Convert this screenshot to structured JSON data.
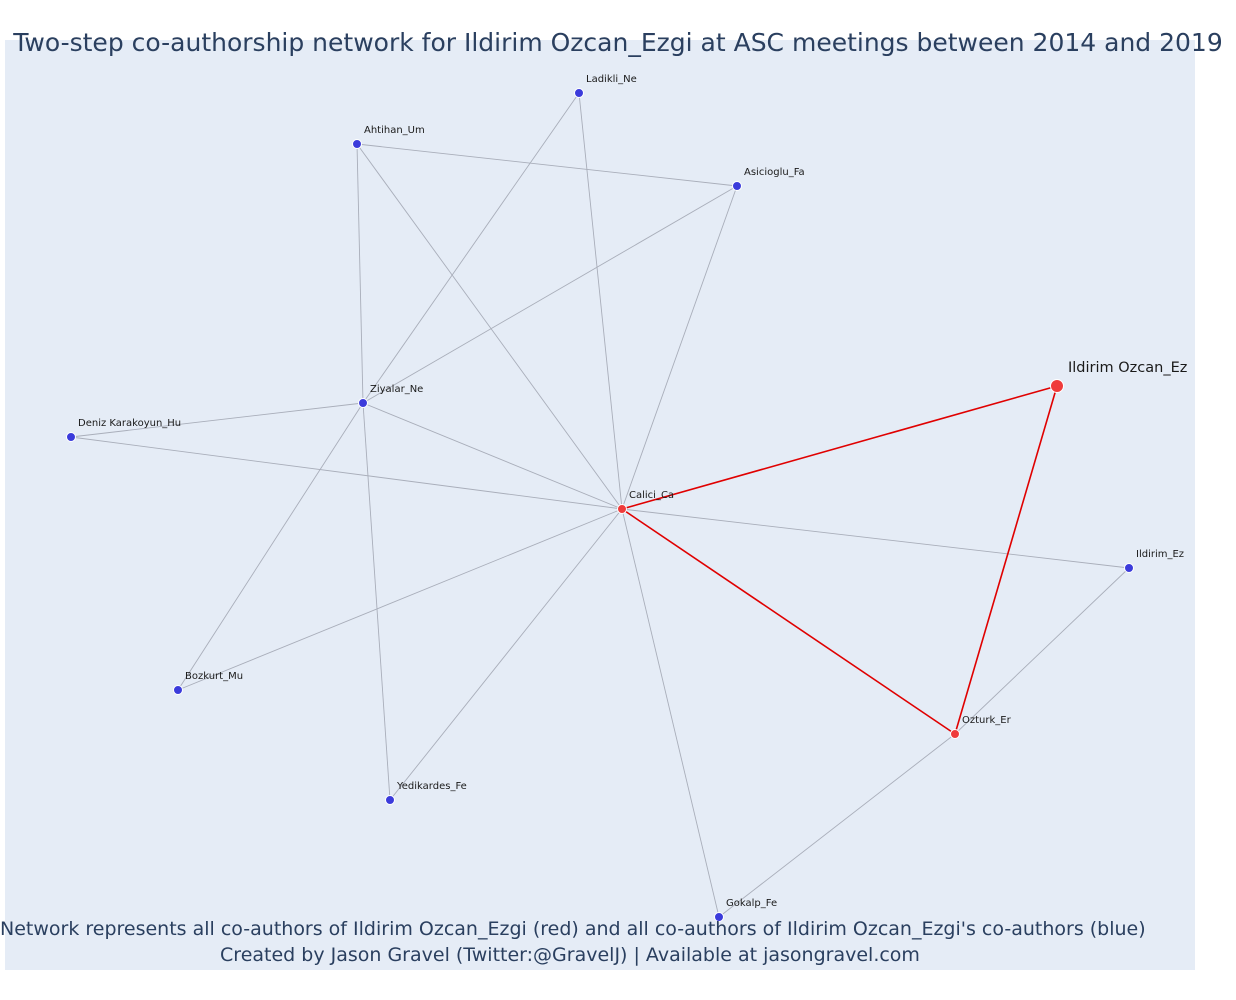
{
  "title": "Two-step co-authorship network for Ildirim Ozcan_Ezgi at ASC meetings between 2014 and 2019",
  "caption": {
    "line1": "Network represents all co-authors of Ildirim Ozcan_Ezgi (red) and all co-authors of Ildirim Ozcan_Ezgi's co-authors (blue)",
    "line2": "Created by Jason Gravel (Twitter:@GravelJ) | Available at jasongravel.com"
  },
  "colors": {
    "background": "#e5ecf6",
    "primary_node": "#ef3b3b",
    "secondary_node": "#3b3bdb",
    "primary_edge": "#e00000",
    "secondary_edge": "#a9aeba"
  },
  "nodes": [
    {
      "id": "ildirim-ozcan",
      "label": "Ildirim Ozcan_Ez",
      "group": "focal"
    },
    {
      "id": "calici",
      "label": "Calici_Ca",
      "group": "coauthor"
    },
    {
      "id": "ozturk",
      "label": "Ozturk_Er",
      "group": "coauthor"
    },
    {
      "id": "ladikli",
      "label": "Ladikli_Ne",
      "group": "second"
    },
    {
      "id": "ahtihan",
      "label": "Ahtihan_Um",
      "group": "second"
    },
    {
      "id": "asicioglu",
      "label": "Asicioglu_Fa",
      "group": "second"
    },
    {
      "id": "ziyalar",
      "label": "Ziyalar_Ne",
      "group": "second"
    },
    {
      "id": "deniz",
      "label": "Deniz Karakoyun_Hu",
      "group": "second"
    },
    {
      "id": "ildirim-ez",
      "label": "Ildirim_Ez",
      "group": "second"
    },
    {
      "id": "bozkurt",
      "label": "Bozkurt_Mu",
      "group": "second"
    },
    {
      "id": "yedikardes",
      "label": "Yedikardes_Fe",
      "group": "second"
    },
    {
      "id": "gokalp",
      "label": "Gokalp_Fe",
      "group": "second"
    }
  ],
  "edges": [
    {
      "from": "ildirim-ozcan",
      "to": "calici",
      "type": "primary"
    },
    {
      "from": "ildirim-ozcan",
      "to": "ozturk",
      "type": "primary"
    },
    {
      "from": "calici",
      "to": "ozturk",
      "type": "primary"
    },
    {
      "from": "calici",
      "to": "ladikli",
      "type": "secondary"
    },
    {
      "from": "calici",
      "to": "ahtihan",
      "type": "secondary"
    },
    {
      "from": "calici",
      "to": "asicioglu",
      "type": "secondary"
    },
    {
      "from": "calici",
      "to": "ziyalar",
      "type": "secondary"
    },
    {
      "from": "calici",
      "to": "deniz",
      "type": "secondary"
    },
    {
      "from": "calici",
      "to": "ildirim-ez",
      "type": "secondary"
    },
    {
      "from": "calici",
      "to": "bozkurt",
      "type": "secondary"
    },
    {
      "from": "calici",
      "to": "yedikardes",
      "type": "secondary"
    },
    {
      "from": "calici",
      "to": "gokalp",
      "type": "secondary"
    },
    {
      "from": "ahtihan",
      "to": "asicioglu",
      "type": "secondary"
    },
    {
      "from": "ahtihan",
      "to": "ziyalar",
      "type": "secondary"
    },
    {
      "from": "ladikli",
      "to": "ziyalar",
      "type": "secondary"
    },
    {
      "from": "asicioglu",
      "to": "ziyalar",
      "type": "secondary"
    },
    {
      "from": "ziyalar",
      "to": "deniz",
      "type": "secondary"
    },
    {
      "from": "ziyalar",
      "to": "bozkurt",
      "type": "secondary"
    },
    {
      "from": "ziyalar",
      "to": "yedikardes",
      "type": "secondary"
    },
    {
      "from": "ozturk",
      "to": "ildirim-ez",
      "type": "secondary"
    },
    {
      "from": "ozturk",
      "to": "gokalp",
      "type": "secondary"
    }
  ]
}
